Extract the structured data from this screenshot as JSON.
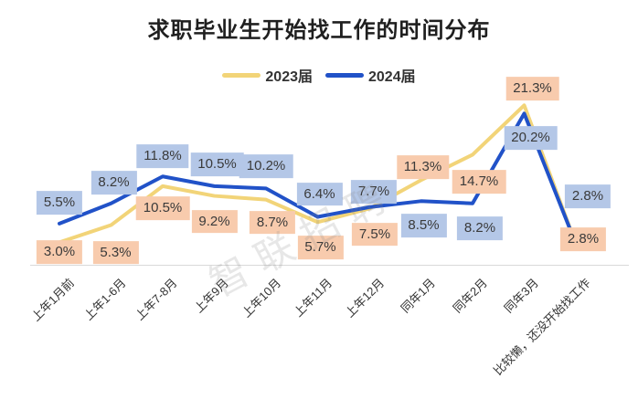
{
  "chart": {
    "title": "求职毕业生开始找工作的时间分布",
    "watermark": "智联招聘"
  },
  "chart_data": {
    "type": "line",
    "title": "求职毕业生开始找工作的时间分布",
    "categories": [
      "上年1月前",
      "上年1-6月",
      "上年7-8月",
      "上年9月",
      "上年10月",
      "上年11月",
      "上年12月",
      "同年1月",
      "同年2月",
      "同年3月",
      "比较懒，还没开始找工作"
    ],
    "series": [
      {
        "name": "2023届",
        "color": "#F2D478",
        "label_bg": "#F8CBAD",
        "values": [
          3.0,
          5.3,
          10.5,
          9.2,
          8.7,
          5.7,
          7.5,
          11.3,
          14.7,
          21.3,
          2.8
        ]
      },
      {
        "name": "2024届",
        "color": "#2152C8",
        "label_bg": "#B4C7E7",
        "values": [
          5.5,
          8.2,
          11.8,
          10.5,
          10.2,
          6.4,
          7.7,
          8.5,
          8.2,
          20.2,
          2.8
        ]
      }
    ],
    "value_suffix": "%",
    "xlabel": "",
    "ylabel": "",
    "ylim": [
      0,
      23
    ],
    "grid": false,
    "legend_position": "top",
    "axis_color": "#d9d9d9",
    "label_text_color": "#3a3a3a"
  }
}
